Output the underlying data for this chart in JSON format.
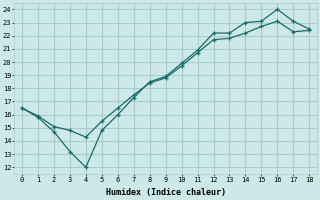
{
  "title": "",
  "xlabel": "Humidex (Indice chaleur)",
  "bg_color": "#cce8e8",
  "grid_color": "#aacccc",
  "line_color": "#1a6b6b",
  "xlim": [
    -0.5,
    18.5
  ],
  "ylim": [
    11.5,
    24.5
  ],
  "xticks": [
    0,
    1,
    2,
    3,
    4,
    5,
    6,
    7,
    8,
    9,
    10,
    11,
    12,
    13,
    14,
    15,
    16,
    17,
    18
  ],
  "yticks": [
    12,
    13,
    14,
    15,
    16,
    17,
    18,
    19,
    20,
    21,
    22,
    23,
    24
  ],
  "line1_x": [
    0,
    1,
    2,
    3,
    4,
    5,
    6,
    7,
    8,
    9,
    10,
    11,
    12,
    13,
    14,
    15,
    16,
    17,
    18
  ],
  "line1_y": [
    16.5,
    15.8,
    14.7,
    13.2,
    12.0,
    14.8,
    16.0,
    17.3,
    18.5,
    18.9,
    19.9,
    20.9,
    22.2,
    22.2,
    23.0,
    23.1,
    24.0,
    23.1,
    22.5
  ],
  "line2_x": [
    0,
    1,
    2,
    3,
    4,
    5,
    6,
    7,
    8,
    9,
    10,
    11,
    12,
    13,
    14,
    15,
    16,
    17,
    18
  ],
  "line2_y": [
    16.5,
    15.9,
    15.1,
    14.8,
    14.3,
    15.5,
    16.5,
    17.5,
    18.4,
    18.8,
    19.7,
    20.7,
    21.7,
    21.8,
    22.2,
    22.7,
    23.1,
    22.3,
    22.4
  ]
}
